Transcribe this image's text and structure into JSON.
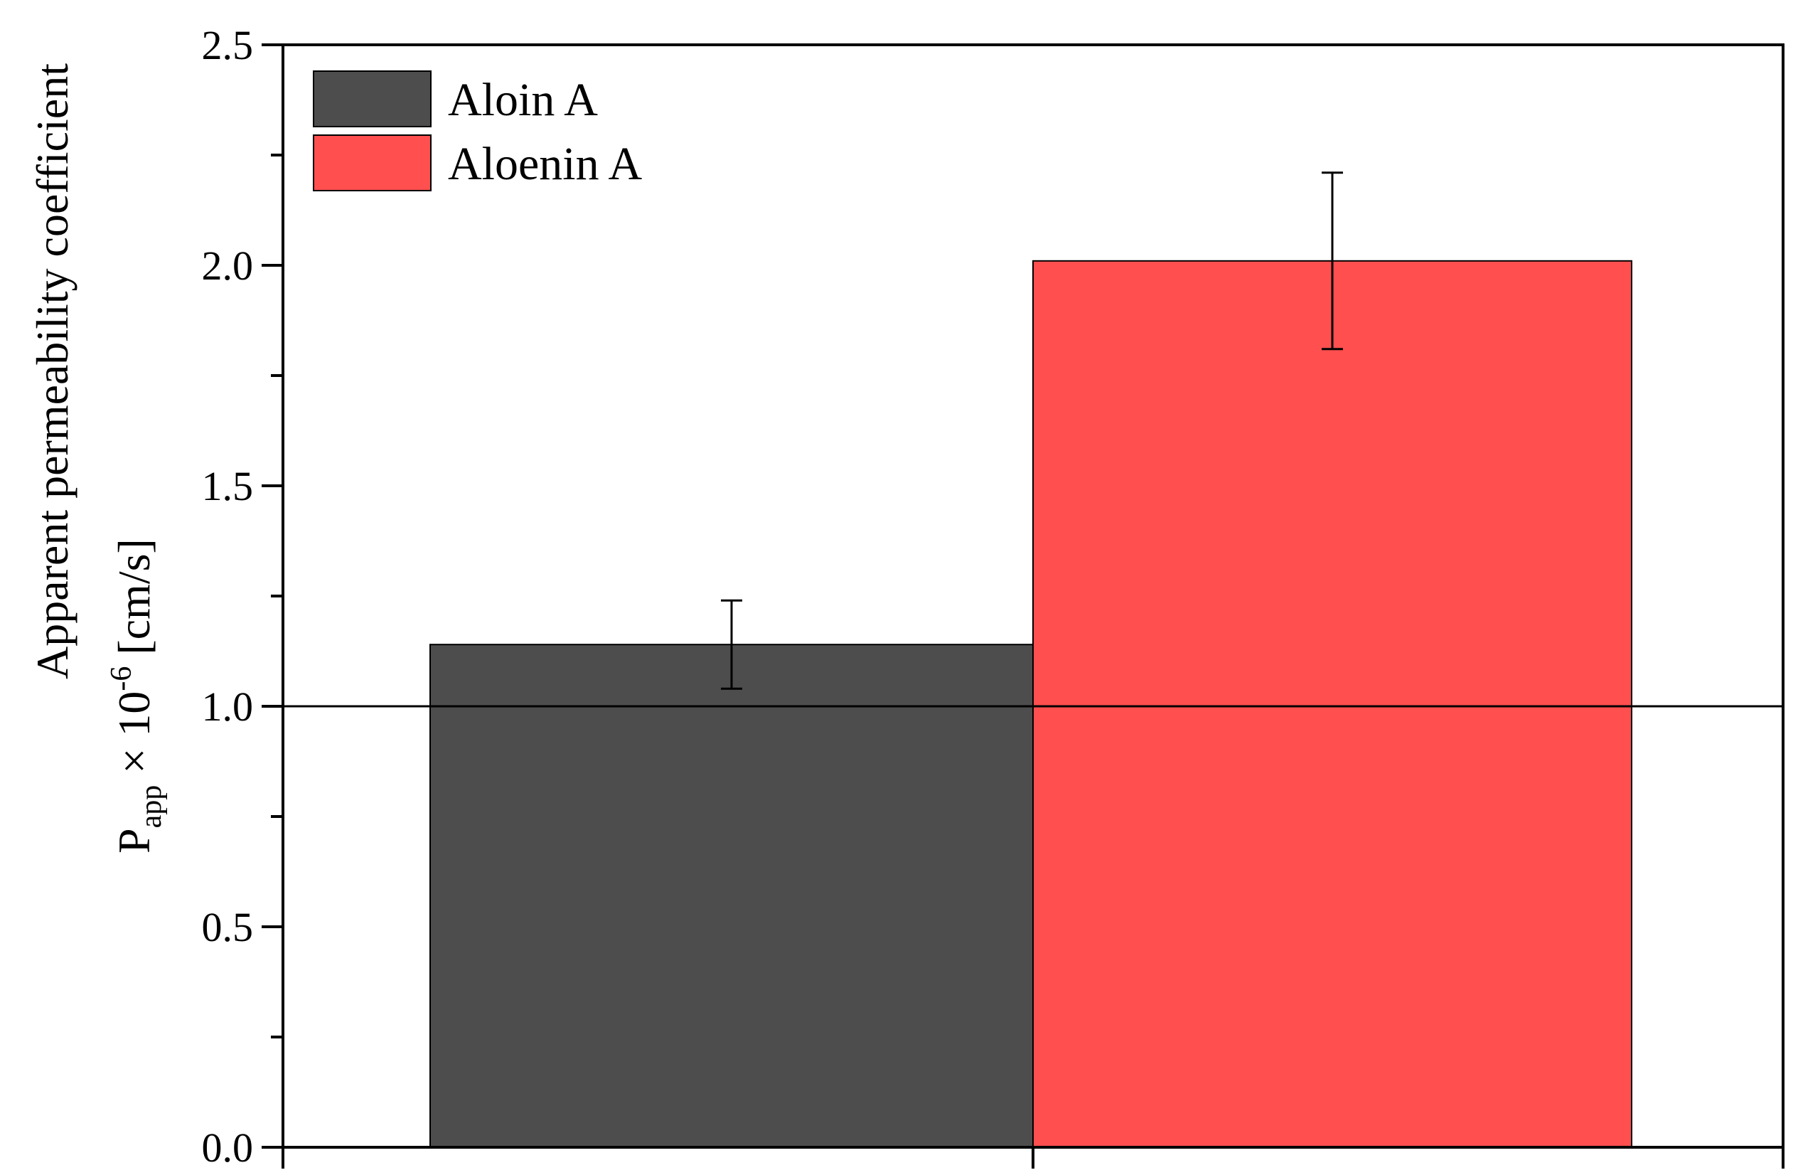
{
  "chart_data": {
    "type": "bar",
    "title": "",
    "xlabel": "",
    "ylabel_line1": "Apparent permeability coefficient",
    "ylabel_line2": {
      "base": "P",
      "subscript": "app",
      "times": " × 10",
      "exponent": "-6",
      "unit": " [cm/s]"
    },
    "ylim": [
      0,
      2.5
    ],
    "yticks": [
      0.0,
      0.5,
      1.0,
      1.5,
      2.0,
      2.5
    ],
    "ytick_labels": [
      "0.0",
      "0.5",
      "1.0",
      "1.5",
      "2.0",
      "2.5"
    ],
    "reference_line": 1.0,
    "series": [
      {
        "name": "Aloin A",
        "value": 1.14,
        "error": 0.1,
        "color": "#4d4d4d"
      },
      {
        "name": "Aloenin A",
        "value": 2.01,
        "error": 0.2,
        "color": "#ff4f4f"
      }
    ],
    "legend_position": "top-left",
    "grid": false
  }
}
